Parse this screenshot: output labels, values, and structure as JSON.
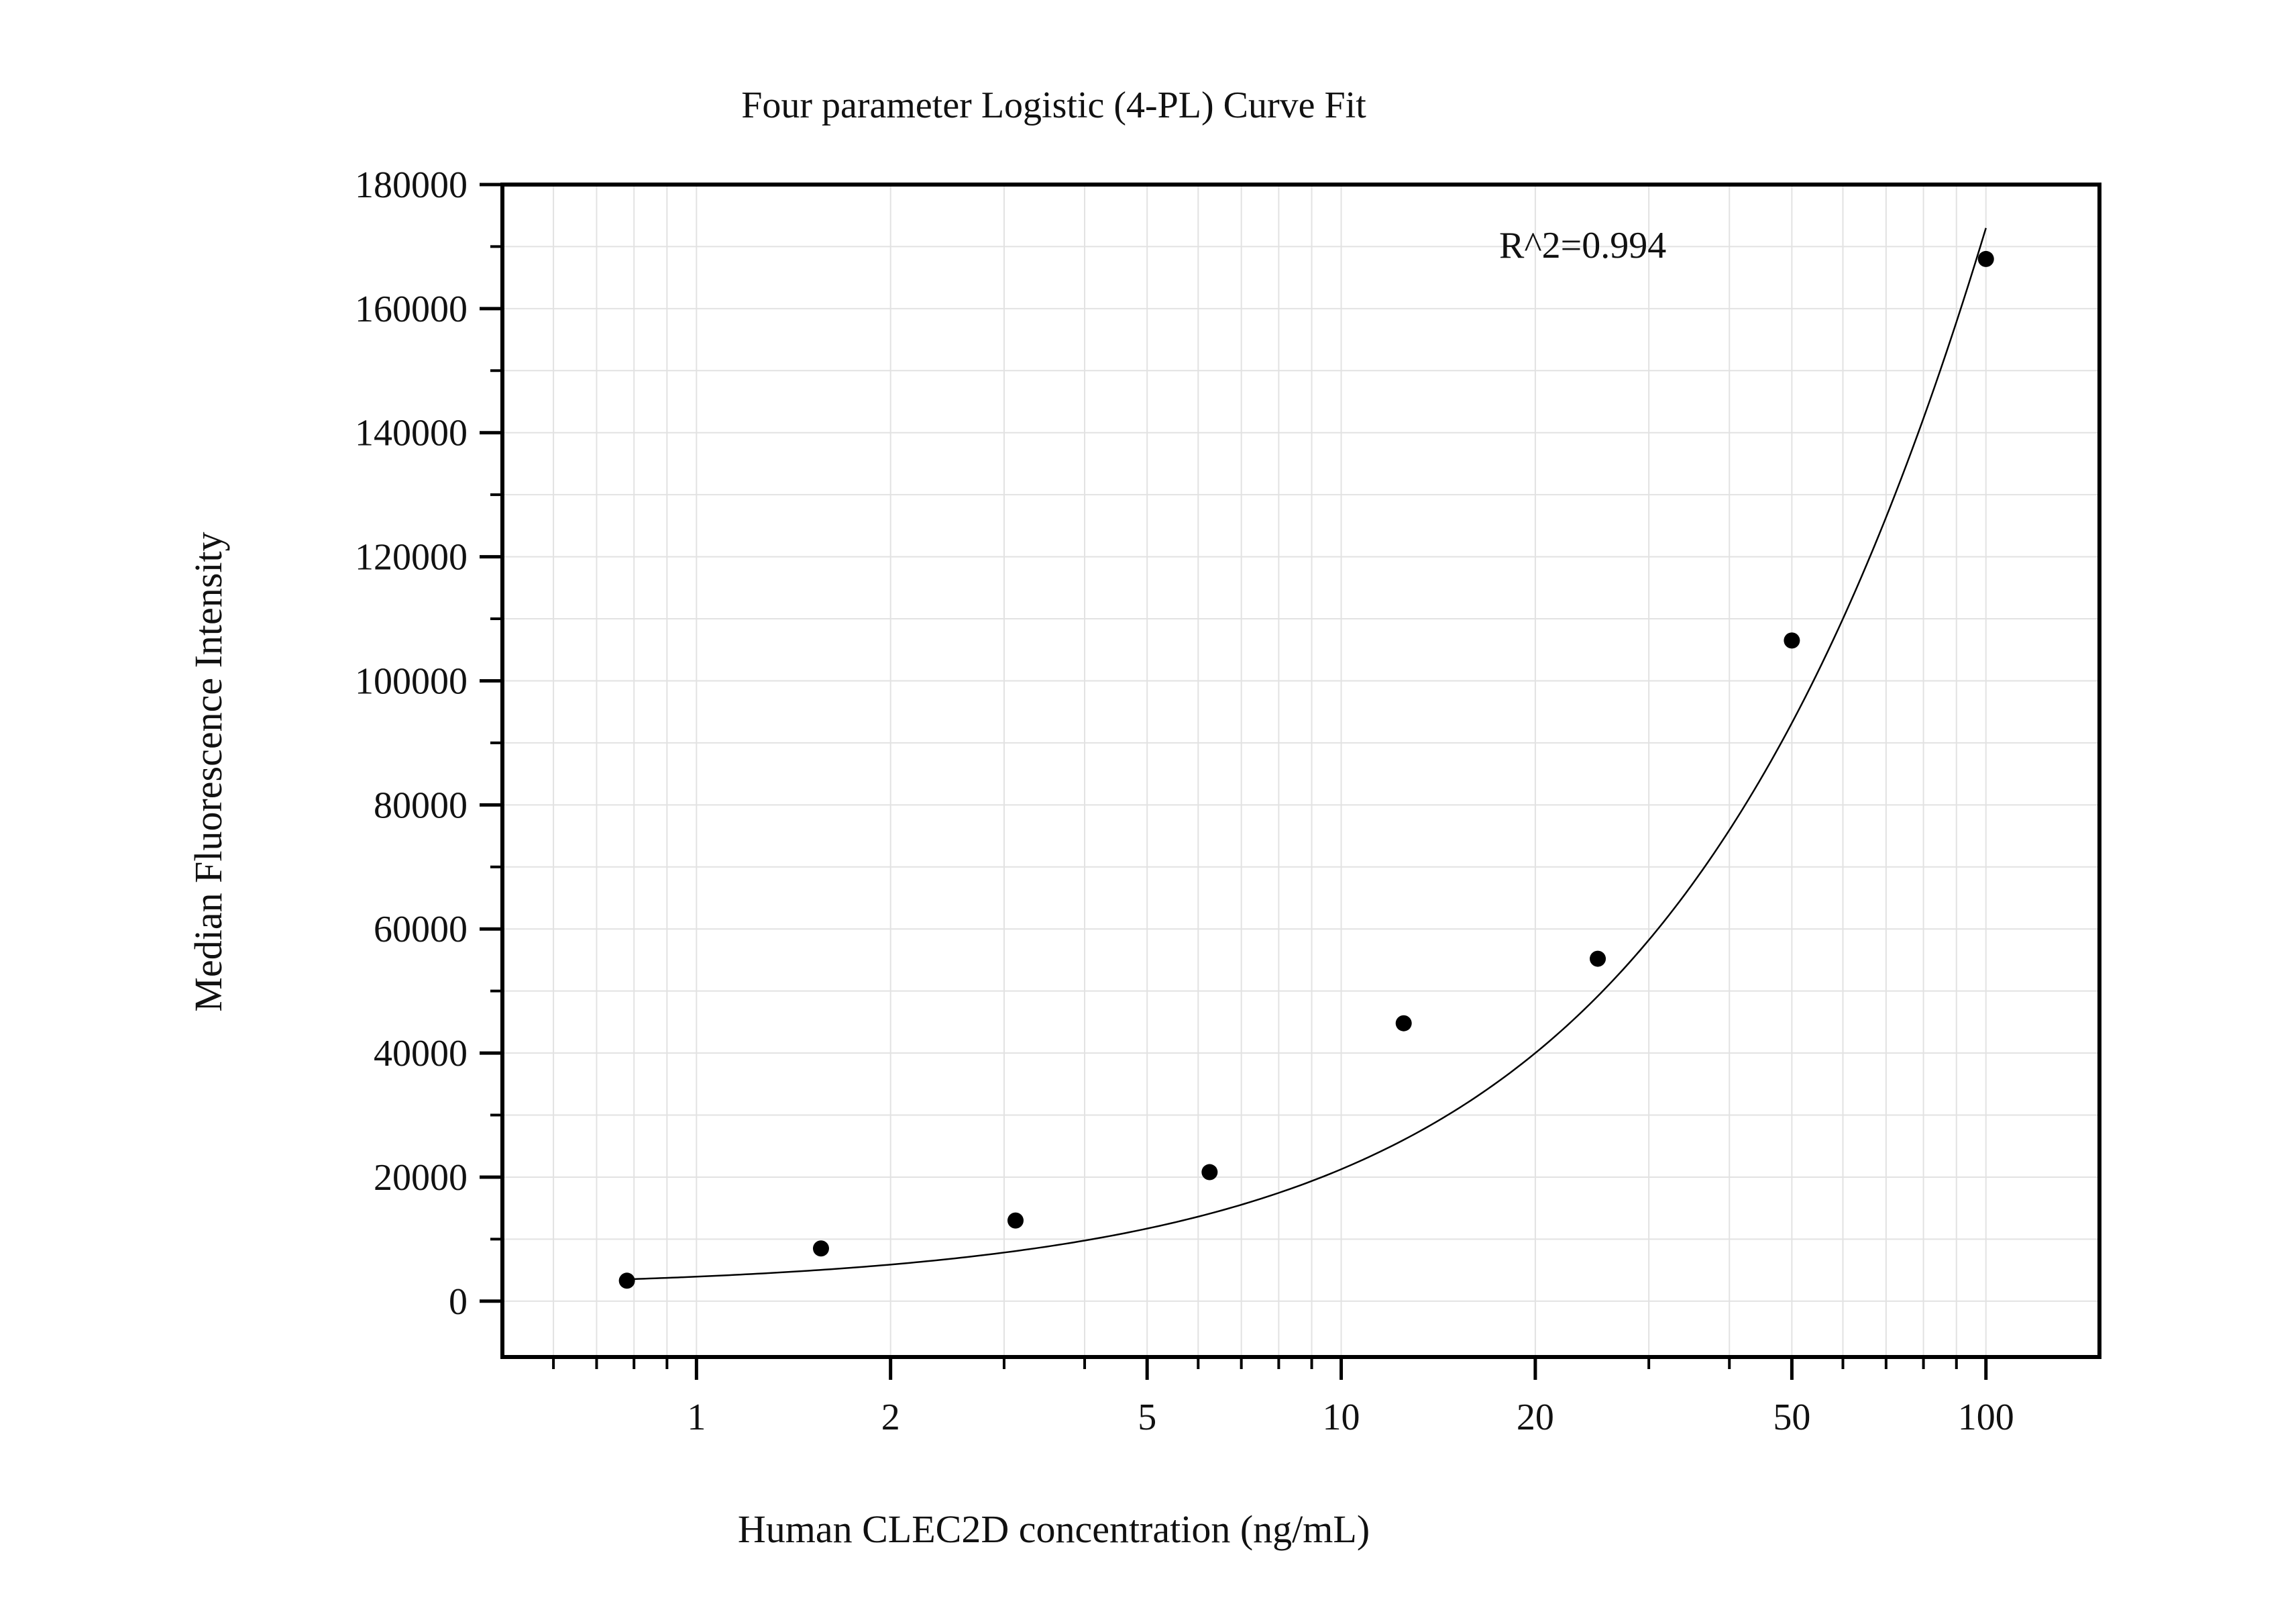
{
  "chart_data": {
    "type": "scatter",
    "title": "Four parameter Logistic (4-PL) Curve Fit",
    "xlabel": "Human CLEC2D concentration (ng/mL)",
    "ylabel": "Median Fluorescence Intensity",
    "x_scale": "log",
    "xlim": [
      0.5,
      150
    ],
    "ylim": [
      -9000,
      180000
    ],
    "x_ticks": [
      1,
      2,
      5,
      10,
      20,
      50,
      100
    ],
    "x_tick_labels": [
      "1",
      "2",
      "5",
      "10",
      "20",
      "50",
      "100"
    ],
    "y_ticks": [
      0,
      20000,
      40000,
      60000,
      80000,
      100000,
      120000,
      140000,
      160000,
      180000
    ],
    "y_tick_labels": [
      "0",
      "20000",
      "40000",
      "60000",
      "80000",
      "100000",
      "120000",
      "140000",
      "160000",
      "180000"
    ],
    "grid": true,
    "annotation": "R^2=0.994",
    "series": [
      {
        "points": [
          {
            "x": 0.78,
            "y": 3300
          },
          {
            "x": 1.56,
            "y": 8500
          },
          {
            "x": 3.125,
            "y": 13000
          },
          {
            "x": 6.25,
            "y": 20800
          },
          {
            "x": 12.5,
            "y": 44800
          },
          {
            "x": 25,
            "y": 55200
          },
          {
            "x": 50,
            "y": 106500
          },
          {
            "x": 100,
            "y": 168000
          }
        ]
      }
    ],
    "fit_curve": {
      "type": "4PL",
      "x_range": [
        0.78,
        100
      ],
      "params": {
        "A": 2000,
        "B": 1.0,
        "C": 700,
        "D": 1370000
      }
    }
  }
}
